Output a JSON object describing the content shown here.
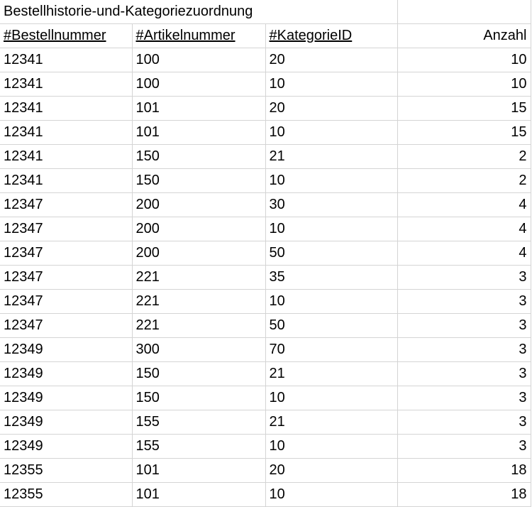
{
  "sheet": {
    "title": "Bestellhistorie-und-Kategoriezuordnung",
    "headers": [
      "#Bestellnummer",
      "#Artikelnummer",
      "#KategorieID",
      "Anzahl"
    ],
    "rows": [
      [
        "12341",
        "100",
        "20",
        "10"
      ],
      [
        "12341",
        "100",
        "10",
        "10"
      ],
      [
        "12341",
        "101",
        "20",
        "15"
      ],
      [
        "12341",
        "101",
        "10",
        "15"
      ],
      [
        "12341",
        "150",
        "21",
        "2"
      ],
      [
        "12341",
        "150",
        "10",
        "2"
      ],
      [
        "12347",
        "200",
        "30",
        "4"
      ],
      [
        "12347",
        "200",
        "10",
        "4"
      ],
      [
        "12347",
        "200",
        "50",
        "4"
      ],
      [
        "12347",
        "221",
        "35",
        "3"
      ],
      [
        "12347",
        "221",
        "10",
        "3"
      ],
      [
        "12347",
        "221",
        "50",
        "3"
      ],
      [
        "12349",
        "300",
        "70",
        "3"
      ],
      [
        "12349",
        "150",
        "21",
        "3"
      ],
      [
        "12349",
        "150",
        "10",
        "3"
      ],
      [
        "12349",
        "155",
        "21",
        "3"
      ],
      [
        "12349",
        "155",
        "10",
        "3"
      ],
      [
        "12355",
        "101",
        "20",
        "18"
      ],
      [
        "12355",
        "101",
        "10",
        "18"
      ]
    ]
  }
}
